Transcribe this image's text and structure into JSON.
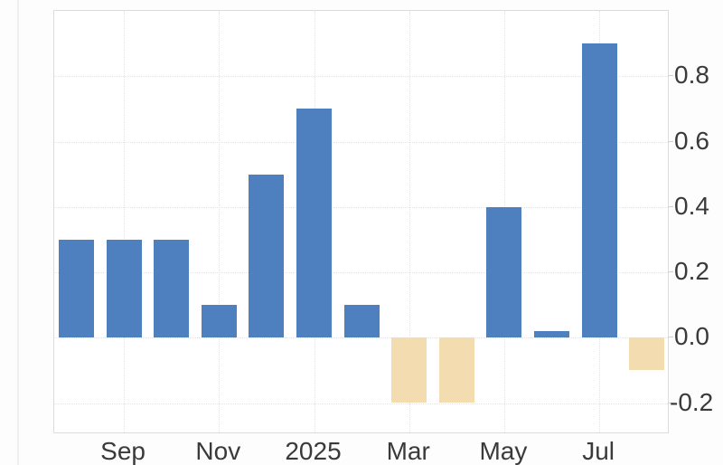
{
  "chart_data": {
    "type": "bar",
    "title": "",
    "xlabel": "",
    "ylabel": "",
    "categories": [
      "",
      "Sep",
      "",
      "Nov",
      "",
      "2025",
      "",
      "Mar",
      "",
      "May",
      "",
      "Jul",
      ""
    ],
    "values": [
      0.3,
      0.3,
      0.3,
      0.1,
      0.5,
      0.7,
      0.1,
      -0.2,
      -0.2,
      0.4,
      0.02,
      0.9,
      -0.1
    ],
    "x_tick_labels": [
      "Sep",
      "Nov",
      "2025",
      "Mar",
      "May",
      "Jul"
    ],
    "x_tick_indices": [
      1,
      3,
      5,
      7,
      9,
      11
    ],
    "y_tick_values": [
      0.8,
      0.6,
      0.4,
      0.2,
      0.0,
      -0.2
    ],
    "y_tick_labels": [
      "0.8",
      "0.6",
      "0.4",
      "0.2",
      "0.0",
      "-0.2"
    ],
    "ylim": [
      -0.29,
      1.0
    ],
    "grid": true,
    "legend": "none",
    "y_axis_side": "right",
    "positive_color": "#4e7fbe",
    "negative_color": "#f2dcb0",
    "grid_color": "#e3e3e3",
    "axis_border_color": "#dcdcdc",
    "tick_mark_color": "#d0d0d0",
    "label_color": "#3a3a3a",
    "background_color": "#ffffff"
  }
}
